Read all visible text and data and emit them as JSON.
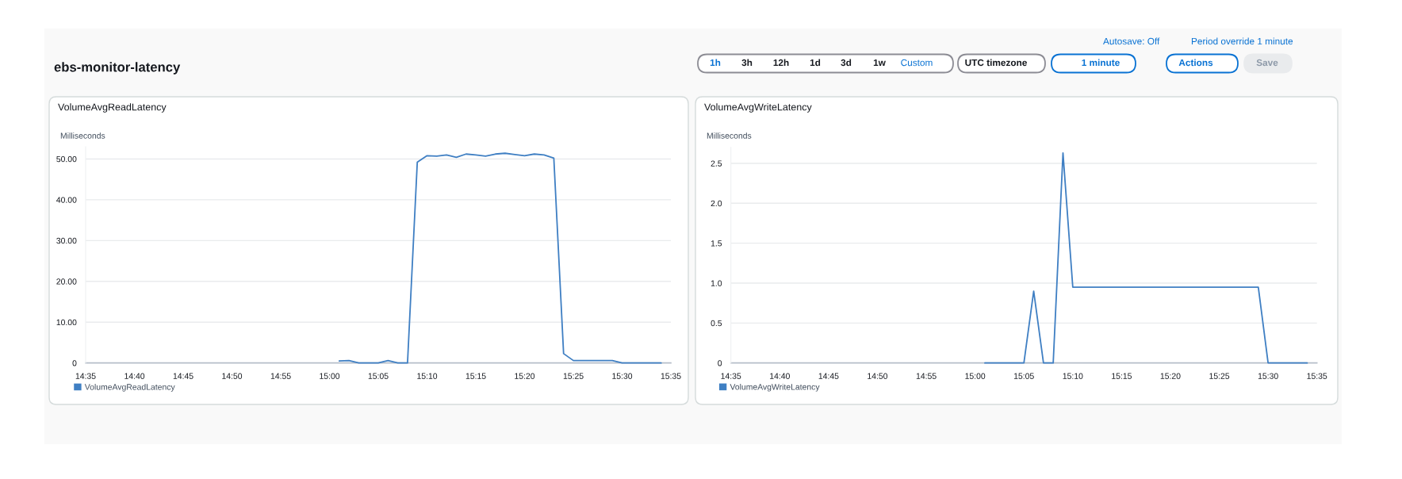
{
  "chart_data": [
    {
      "type": "other",
      "title": "ebs-monitor-latency",
      "annotations": [
        "Autosave: Off",
        "Period override 1 minute",
        "1h",
        "3h",
        "12h",
        "1d",
        "3d",
        "1w",
        "Custom",
        "UTC timezone",
        "1 minute",
        "Actions",
        "Save"
      ]
    },
    {
      "type": "line",
      "title": "VolumeAvgReadLatency",
      "ylabel": "Milliseconds",
      "x": [
        15.0167,
        15.0333,
        15.05,
        15.0667,
        15.0833,
        15.1,
        15.1167,
        15.1333,
        15.15,
        15.1667,
        15.1833,
        15.2,
        15.2167,
        15.2333,
        15.25,
        15.2667,
        15.2833,
        15.3,
        15.3167,
        15.3333,
        15.35,
        15.3667,
        15.3833,
        15.4,
        15.4167,
        15.4333,
        15.45,
        15.4667,
        15.4833,
        15.5,
        15.5167,
        15.5333,
        15.55,
        15.5667
      ],
      "series": [
        {
          "name": "VolumeAvgReadLatency",
          "color": "#3f7fc3",
          "values": [
            0.5,
            0.6,
            0,
            0,
            0,
            0.6,
            0,
            0,
            49.2,
            50.8,
            50.7,
            51.0,
            50.4,
            51.2,
            51.0,
            50.7,
            51.2,
            51.4,
            51.1,
            50.8,
            51.2,
            51.0,
            50.2,
            2.3,
            0.6,
            0.6,
            0.6,
            0.6,
            0.6,
            0,
            0,
            0,
            0,
            0
          ]
        }
      ],
      "xlim": [
        14.5833,
        15.5833
      ],
      "xticks": [
        {
          "value": 14.5833,
          "label": "14:35"
        },
        {
          "value": 14.6667,
          "label": "14:40"
        },
        {
          "value": 14.75,
          "label": "14:45"
        },
        {
          "value": 14.8333,
          "label": "14:50"
        },
        {
          "value": 14.9167,
          "label": "14:55"
        },
        {
          "value": 15.0,
          "label": "15:00"
        },
        {
          "value": 15.0833,
          "label": "15:05"
        },
        {
          "value": 15.1667,
          "label": "15:10"
        },
        {
          "value": 15.25,
          "label": "15:15"
        },
        {
          "value": 15.3333,
          "label": "15:20"
        },
        {
          "value": 15.4167,
          "label": "15:25"
        },
        {
          "value": 15.5,
          "label": "15:30"
        },
        {
          "value": 15.5833,
          "label": "15:35"
        }
      ],
      "ylim": [
        0,
        53
      ],
      "yticks": [
        0,
        {
          "value": 10,
          "label": "10.00"
        },
        {
          "value": 20,
          "label": "20.00"
        },
        {
          "value": 30,
          "label": "30.00"
        },
        {
          "value": 40,
          "label": "40.00"
        },
        {
          "value": 50,
          "label": "50.00"
        }
      ],
      "grid": "y",
      "legend": "bottom left"
    },
    {
      "type": "line",
      "title": "VolumeAvgWriteLatency",
      "ylabel": "Milliseconds",
      "x": [
        15.0167,
        15.0333,
        15.05,
        15.0667,
        15.0833,
        15.1,
        15.1167,
        15.1333,
        15.15,
        15.1667,
        15.1833,
        15.2,
        15.2167,
        15.2333,
        15.25,
        15.2667,
        15.2833,
        15.3,
        15.3167,
        15.3333,
        15.35,
        15.3667,
        15.3833,
        15.4,
        15.4167,
        15.4333,
        15.45,
        15.4667,
        15.4833,
        15.5,
        15.5167,
        15.5333,
        15.55,
        15.5667
      ],
      "series": [
        {
          "name": "VolumeAvgWriteLatency",
          "color": "#3f7fc3",
          "values": [
            0,
            0,
            0,
            0,
            0,
            0.9,
            0,
            0,
            2.63,
            0.95,
            0.95,
            0.95,
            0.95,
            0.95,
            0.95,
            0.95,
            0.95,
            0.95,
            0.95,
            0.95,
            0.95,
            0.95,
            0.95,
            0.95,
            0.95,
            0.95,
            0.95,
            0.95,
            0.95,
            0,
            0,
            0,
            0,
            0
          ]
        }
      ],
      "xlim": [
        14.5833,
        15.5833
      ],
      "xticks": [
        {
          "value": 14.5833,
          "label": "14:35"
        },
        {
          "value": 14.6667,
          "label": "14:40"
        },
        {
          "value": 14.75,
          "label": "14:45"
        },
        {
          "value": 14.8333,
          "label": "14:50"
        },
        {
          "value": 14.9167,
          "label": "14:55"
        },
        {
          "value": 15.0,
          "label": "15:00"
        },
        {
          "value": 15.0833,
          "label": "15:05"
        },
        {
          "value": 15.1667,
          "label": "15:10"
        },
        {
          "value": 15.25,
          "label": "15:15"
        },
        {
          "value": 15.3333,
          "label": "15:20"
        },
        {
          "value": 15.4167,
          "label": "15:25"
        },
        {
          "value": 15.5,
          "label": "15:30"
        },
        {
          "value": 15.5833,
          "label": "15:35"
        }
      ],
      "ylim": [
        0,
        2.7
      ],
      "yticks": [
        0,
        0.5,
        {
          "value": 1,
          "label": "1.0"
        },
        1.5,
        {
          "value": 2,
          "label": "2.0"
        },
        2.5
      ],
      "grid": "y",
      "legend": "bottom left"
    }
  ]
}
